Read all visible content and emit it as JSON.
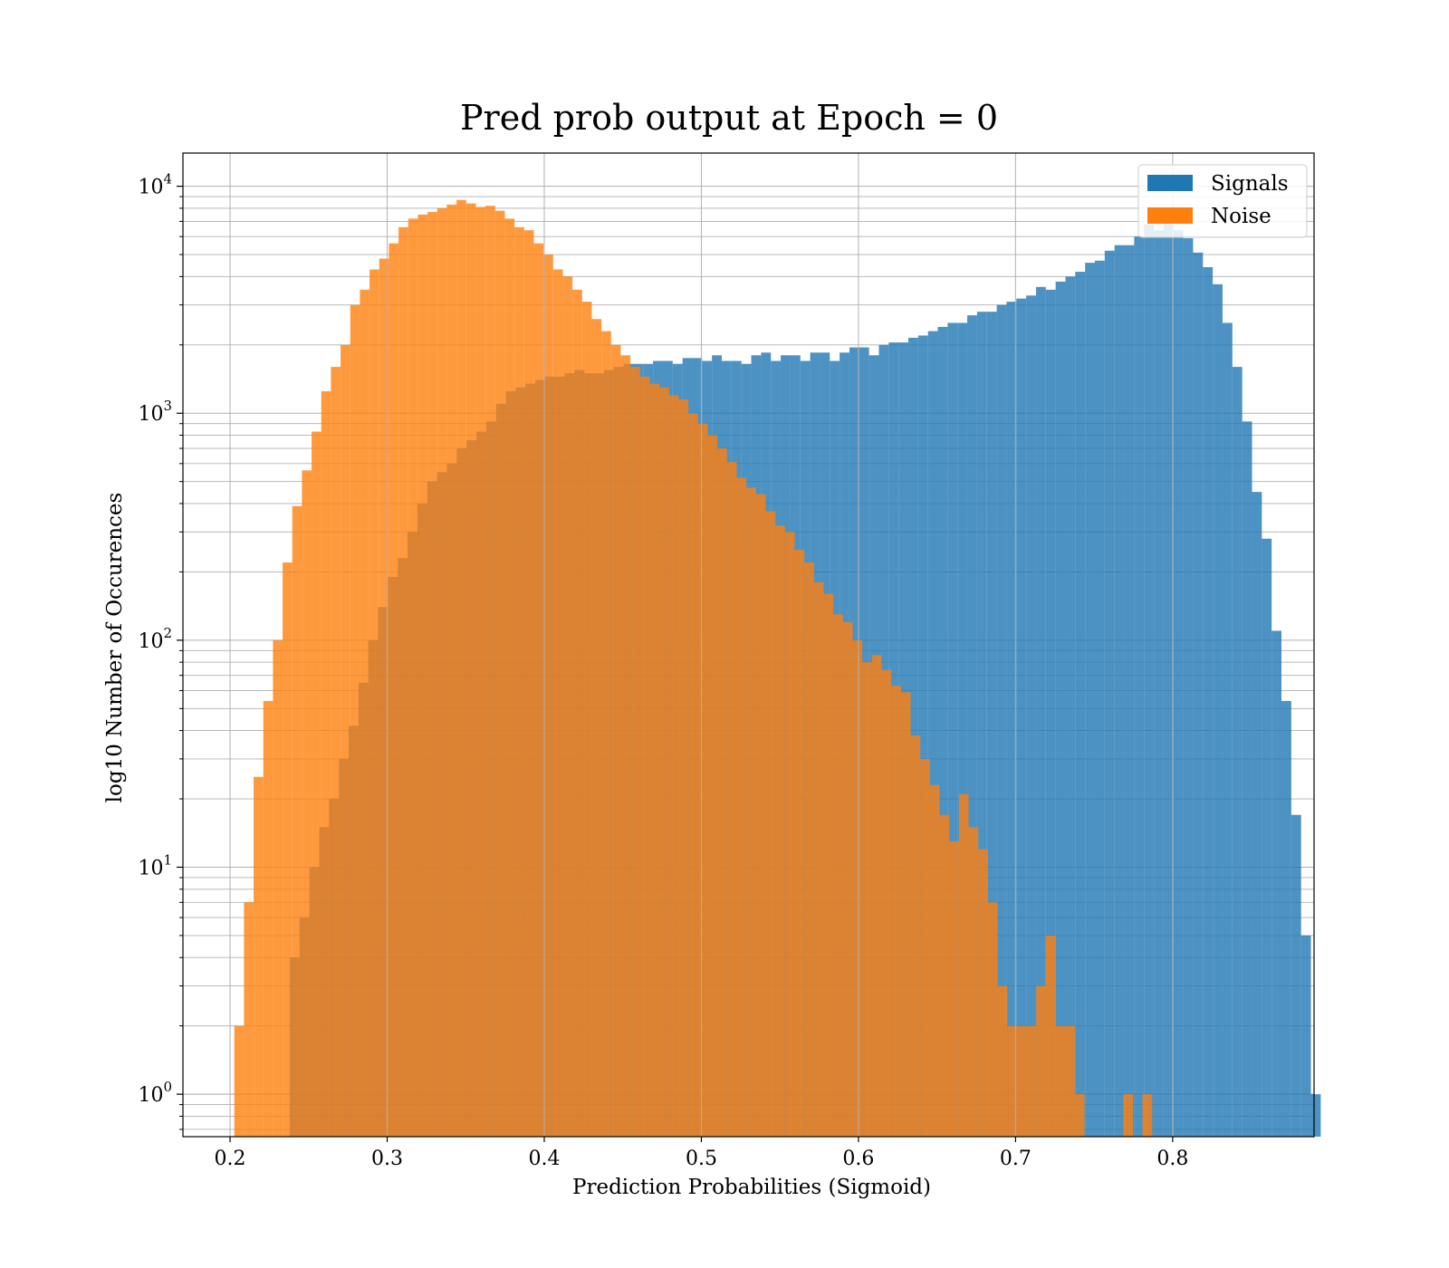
{
  "chart_data": {
    "type": "bar",
    "title": "Pred prob output at Epoch = 0",
    "xlabel": "Prediction Probabilities (Sigmoid)",
    "ylabel": "log10 Number of Occurences",
    "yscale": "log",
    "xlim": [
      0.17,
      0.89
    ],
    "ylim": [
      0.65,
      14000
    ],
    "grid": true,
    "legend_position": "top-right",
    "x_ticks": [
      {
        "value": 0.2,
        "label": "0.2"
      },
      {
        "value": 0.3,
        "label": "0.3"
      },
      {
        "value": 0.4,
        "label": "0.4"
      },
      {
        "value": 0.5,
        "label": "0.5"
      },
      {
        "value": 0.6,
        "label": "0.6"
      },
      {
        "value": 0.7,
        "label": "0.7"
      },
      {
        "value": 0.8,
        "label": "0.8"
      }
    ],
    "y_ticks": [
      {
        "value": 1,
        "base": "10",
        "exp": "0"
      },
      {
        "value": 10,
        "base": "10",
        "exp": "1"
      },
      {
        "value": 100,
        "base": "10",
        "exp": "2"
      },
      {
        "value": 1000,
        "base": "10",
        "exp": "3"
      },
      {
        "value": 10000,
        "base": "10",
        "exp": "4"
      }
    ],
    "series": [
      {
        "name": "Signals",
        "color": "#1f77b4",
        "opacity": 0.8,
        "bin_start": 0.238,
        "bin_width": 0.00625,
        "values": [
          4,
          6,
          10,
          15,
          20,
          30,
          42,
          65,
          100,
          140,
          190,
          230,
          300,
          400,
          500,
          550,
          600,
          700,
          760,
          830,
          920,
          1100,
          1250,
          1300,
          1350,
          1400,
          1450,
          1450,
          1500,
          1550,
          1500,
          1500,
          1550,
          1600,
          1650,
          1650,
          1650,
          1700,
          1700,
          1650,
          1750,
          1750,
          1700,
          1800,
          1700,
          1700,
          1650,
          1800,
          1850,
          1700,
          1800,
          1800,
          1700,
          1850,
          1850,
          1700,
          1850,
          1950,
          1950,
          1800,
          2000,
          2050,
          2050,
          2150,
          2200,
          2300,
          2400,
          2500,
          2500,
          2700,
          2800,
          2800,
          3000,
          3100,
          3200,
          3300,
          3600,
          3500,
          3800,
          4000,
          4200,
          4600,
          4700,
          5200,
          5500,
          5500,
          6000,
          6800,
          6400,
          6900,
          6400,
          5900,
          5100,
          4400,
          3700,
          2500,
          1600,
          920,
          450,
          280,
          110,
          54,
          17,
          5,
          1
        ]
      },
      {
        "name": "Noise",
        "color": "#ff7f0e",
        "opacity": 0.8,
        "bin_start": 0.2027,
        "bin_width": 0.00615,
        "values": [
          2,
          7,
          25,
          54,
          100,
          220,
          390,
          560,
          830,
          1250,
          1600,
          2000,
          3000,
          3500,
          4300,
          4800,
          5600,
          6600,
          7200,
          7500,
          7700,
          8000,
          8300,
          8700,
          8400,
          8100,
          8200,
          7800,
          7200,
          6600,
          6400,
          5600,
          5000,
          4300,
          4000,
          3500,
          3100,
          2600,
          2300,
          2000,
          1800,
          1600,
          1450,
          1350,
          1300,
          1200,
          1150,
          1000,
          900,
          800,
          700,
          610,
          520,
          470,
          440,
          370,
          320,
          300,
          250,
          220,
          180,
          160,
          130,
          120,
          100,
          80,
          86,
          74,
          63,
          59,
          38,
          30,
          23,
          17,
          13,
          21,
          15,
          12,
          7,
          3,
          2,
          2,
          2,
          3,
          5,
          2,
          2,
          1,
          0,
          0,
          0,
          0,
          1,
          0,
          1
        ]
      }
    ],
    "legend": [
      {
        "label": "Signals",
        "color": "#1f77b4"
      },
      {
        "label": "Noise",
        "color": "#ff7f0e"
      }
    ]
  }
}
